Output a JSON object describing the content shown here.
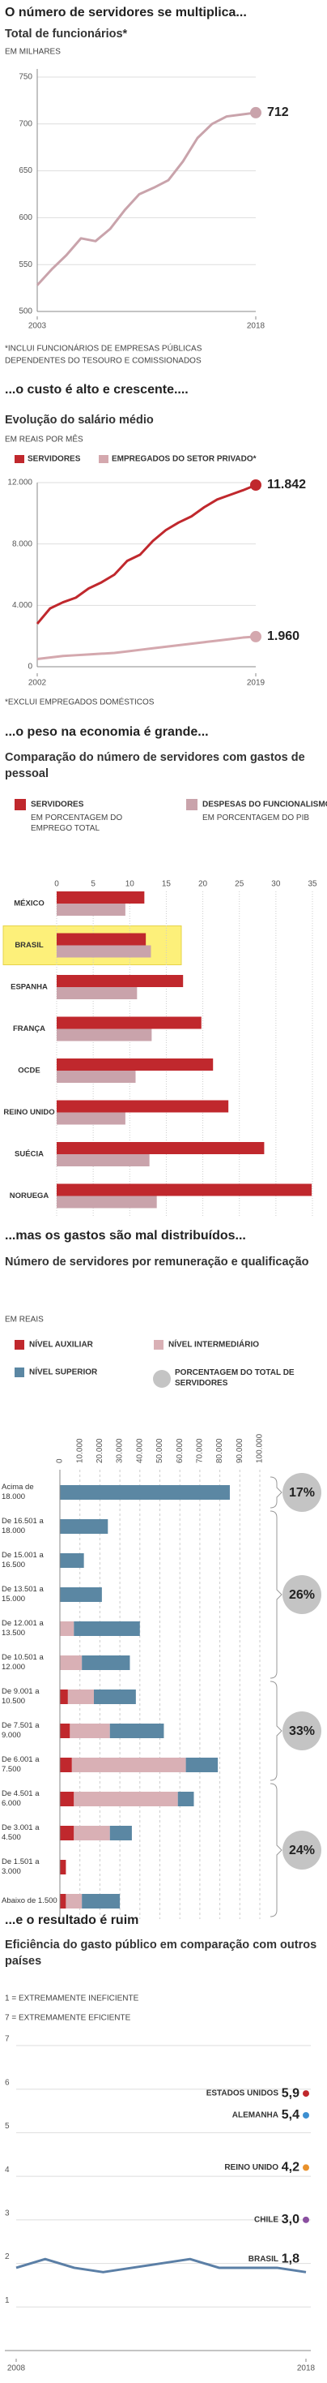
{
  "chart_data": [
    {
      "type": "line",
      "title": "O número de servidores se multiplica...",
      "subtitle": "Total de funcionários*",
      "unit": "EM MILHARES",
      "x": [
        2003,
        2004,
        2005,
        2006,
        2007,
        2008,
        2009,
        2010,
        2011,
        2012,
        2013,
        2014,
        2015,
        2016,
        2017,
        2018
      ],
      "values": [
        528,
        545,
        560,
        578,
        575,
        588,
        608,
        625,
        632,
        640,
        660,
        685,
        700,
        708,
        710,
        712
      ],
      "color": "#c9a3ab",
      "xlim": [
        2003,
        2018
      ],
      "xticks": [
        2003,
        2018
      ],
      "ylim": [
        500,
        750
      ],
      "yticks": [
        500,
        550,
        600,
        650,
        700,
        750
      ],
      "grid": true,
      "footnote": [
        "*INCLUI FUNCIONÁRIOS DE EMPRESAS PÚBLICAS",
        "DEPENDENTES DO TESOURO E COMISSIONADOS"
      ]
    },
    {
      "type": "line",
      "title": "...o custo é alto e crescente....",
      "subtitle": "Evolução do salário médio",
      "unit": "EM REAIS POR MÊS",
      "x": [
        2002,
        2003,
        2004,
        2005,
        2006,
        2007,
        2008,
        2009,
        2010,
        2011,
        2012,
        2013,
        2014,
        2015,
        2016,
        2017,
        2018,
        2019
      ],
      "series": [
        {
          "name": "SERVIDORES",
          "color": "#c0282d",
          "values": [
            2800,
            3800,
            4200,
            4500,
            5100,
            5500,
            6000,
            6900,
            7300,
            8200,
            8900,
            9400,
            9800,
            10400,
            10900,
            11200,
            11500,
            11842
          ],
          "value_labels": [
            null,
            null,
            null,
            null,
            null,
            null,
            null,
            null,
            null,
            null,
            null,
            null,
            null,
            null,
            null,
            null,
            null,
            "11.842"
          ]
        },
        {
          "name": "EMPREGADOS DO SETOR PRIVADO*",
          "color": "#d4a8ae",
          "values": [
            500,
            600,
            700,
            750,
            800,
            850,
            900,
            1000,
            1100,
            1200,
            1300,
            1400,
            1500,
            1600,
            1700,
            1800,
            1900,
            1960
          ],
          "value_labels": [
            null,
            null,
            null,
            null,
            null,
            null,
            null,
            null,
            null,
            null,
            null,
            null,
            null,
            null,
            null,
            null,
            null,
            "1.960"
          ]
        }
      ],
      "xlim": [
        2002,
        2019
      ],
      "xticks": [
        2002,
        2019
      ],
      "ylim": [
        0,
        12000
      ],
      "yticks": [
        0,
        {
          "value": 4000,
          "label": "4.000"
        },
        {
          "value": 8000,
          "label": "8.000"
        },
        {
          "value": 12000,
          "label": "12.000"
        }
      ],
      "grid": true,
      "footnote": [
        "*EXCLUI EMPREGADOS DOMÉSTICOS"
      ]
    },
    {
      "type": "bar",
      "orientation": "horizontal",
      "title": "...o peso na economia é grande...",
      "subtitle": "Comparação do número de servidores com gastos de pessoal",
      "categories": [
        "MÉXICO",
        "BRASIL",
        "ESPANHA",
        "FRANÇA",
        "OCDE",
        "REINO UNIDO",
        "SUÉCIA",
        "NORUEGA"
      ],
      "series": [
        {
          "name": "SERVIDORES",
          "description": "EM PORCENTAGEM DO EMPREGO TOTAL",
          "color": "#c0282d",
          "values": [
            12,
            12.2,
            17.3,
            19.8,
            21.4,
            23.5,
            28.4,
            34.9
          ]
        },
        {
          "name": "DESPESAS DO FUNCIONALISMO",
          "description": "EM PORCENTAGEM DO PIB",
          "color": "#c9a3ab",
          "values": [
            9.4,
            12.9,
            11,
            13,
            10.8,
            9.4,
            12.7,
            13.7
          ]
        }
      ],
      "xlim": [
        0,
        35
      ],
      "xticks": [
        0,
        5,
        10,
        15,
        20,
        25,
        30,
        35
      ],
      "grid": true,
      "highlight": "BRASIL",
      "highlight_color": "#fdf07a"
    },
    {
      "type": "stacked_bar",
      "orientation": "horizontal",
      "title": "...mas os gastos são mal distribuídos...",
      "subtitle": "Número de servidores por remuneração e qualificação",
      "unit": "EM REAIS",
      "categories": [
        "Acima de 18.000",
        "De 16.501 a 18.000",
        "De 15.001 a 16.500",
        "De 13.501 a 15.000",
        "De 12.001 a 13.500",
        "De 10.501 a 12.000",
        "De 9.001 a 10.500",
        "De 7.501 a 9.000",
        "De 6.001 a 7.500",
        "De 4.501 a 6.000",
        "De 3.001 a 4.500",
        "De 1.501 a 3.000",
        "Abaixo de 1.500"
      ],
      "series": [
        {
          "name": "NÍVEL AUXILIAR",
          "color": "#c0282d",
          "values": [
            0,
            0,
            0,
            0,
            0,
            0,
            4000,
            5000,
            6000,
            7000,
            7000,
            3000,
            3000
          ]
        },
        {
          "name": "NÍVEL INTERMEDIÁRIO",
          "color": "#d9b0b5",
          "values": [
            0,
            0,
            0,
            0,
            7000,
            11000,
            13000,
            20000,
            57000,
            52000,
            18000,
            0,
            8000
          ]
        },
        {
          "name": "NÍVEL SUPERIOR",
          "color": "#5b87a3",
          "values": [
            85000,
            24000,
            12000,
            21000,
            33000,
            24000,
            21000,
            27000,
            16000,
            8000,
            11000,
            0,
            19000
          ]
        }
      ],
      "shares": {
        "name": "PORCENTAGEM DO TOTAL DE SERVIDORES",
        "color": "#c4c4c4",
        "values": [
          17,
          26,
          33,
          24
        ],
        "value_labels": [
          "17%",
          "26%",
          "33%",
          "24%"
        ]
      },
      "xlim": [
        0,
        100000
      ],
      "xticks": [
        0,
        {
          "value": 10000,
          "label": "10.000"
        },
        {
          "value": 20000,
          "label": "20.000"
        },
        {
          "value": 30000,
          "label": "30.000"
        },
        {
          "value": 40000,
          "label": "40.000"
        },
        {
          "value": 50000,
          "label": "50.000"
        },
        {
          "value": 60000,
          "label": "60.000"
        },
        {
          "value": 70000,
          "label": "70.000"
        },
        {
          "value": 80000,
          "label": "80.000"
        },
        {
          "value": 90000,
          "label": "90.000"
        },
        {
          "value": 100000,
          "label": "100.000"
        }
      ],
      "grid": true
    },
    {
      "type": "line",
      "title": "...e o resultado é ruim",
      "subtitle": "Eficiência do gasto público em comparação com outros países",
      "notes": [
        "1 = EXTREMAMENTE INEFICIENTE",
        "7 = EXTREMAMENTE EFICIENTE"
      ],
      "x": [
        2008,
        2009,
        2010,
        2011,
        2012,
        2013,
        2014,
        2015,
        2016,
        2017,
        2018
      ],
      "series": [
        {
          "name": "ESTADOS UNIDOS",
          "color": "#c0282d",
          "values": [
            null,
            null,
            null,
            null,
            null,
            null,
            null,
            null,
            null,
            null,
            5.9
          ],
          "value_labels": [
            null,
            null,
            null,
            null,
            null,
            null,
            null,
            null,
            null,
            null,
            "5,9"
          ]
        },
        {
          "name": "ALEMANHA",
          "color": "#3d8fd1",
          "values": [
            null,
            null,
            null,
            null,
            null,
            null,
            null,
            null,
            null,
            null,
            5.4
          ],
          "value_labels": [
            null,
            null,
            null,
            null,
            null,
            null,
            null,
            null,
            null,
            null,
            "5,4"
          ]
        },
        {
          "name": "REINO UNIDO",
          "color": "#e8912b",
          "values": [
            null,
            null,
            null,
            null,
            null,
            null,
            null,
            null,
            null,
            null,
            4.2
          ],
          "value_labels": [
            null,
            null,
            null,
            null,
            null,
            null,
            null,
            null,
            null,
            null,
            "4,2"
          ]
        },
        {
          "name": "CHILE",
          "color": "#8a4fa0",
          "values": [
            null,
            null,
            null,
            null,
            null,
            null,
            null,
            null,
            null,
            null,
            3.0
          ],
          "value_labels": [
            null,
            null,
            null,
            null,
            null,
            null,
            null,
            null,
            null,
            null,
            "3,0"
          ]
        },
        {
          "name": "BRASIL",
          "color": "#5b7fa6",
          "values": [
            1.9,
            2.1,
            1.9,
            1.8,
            1.9,
            2.0,
            2.1,
            1.9,
            1.9,
            1.9,
            1.8
          ],
          "value_labels": [
            null,
            null,
            null,
            null,
            null,
            null,
            null,
            null,
            null,
            null,
            "1,8"
          ]
        }
      ],
      "xlim": [
        2008,
        2018
      ],
      "xticks": [
        2008,
        2018
      ],
      "ylim": [
        0,
        7
      ],
      "yticks": [
        1,
        2,
        3,
        4,
        5,
        6,
        7
      ],
      "grid": true
    }
  ]
}
